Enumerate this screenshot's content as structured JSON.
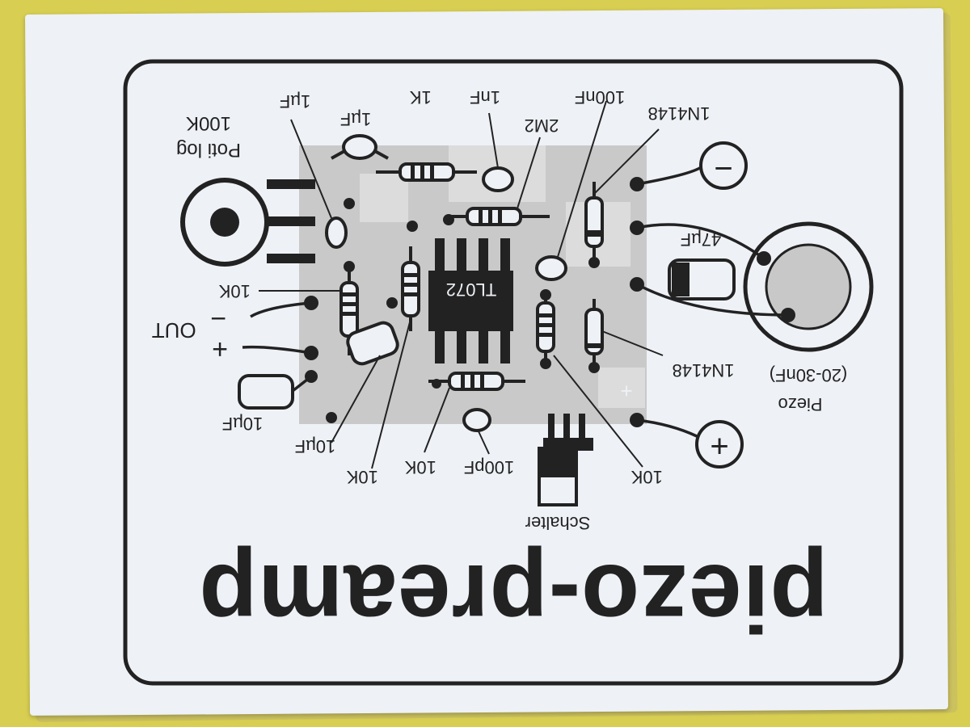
{
  "title": "piezo-preamp",
  "labels": {
    "poti": "Poti log",
    "poti_value": "100K",
    "c1": "1µF",
    "c2": "1µF",
    "r1k": "1K",
    "c1nf": "1nF",
    "r2m2": "2M2",
    "c100nf": "100nF",
    "d1": "1N4148",
    "c47": "47µF",
    "r10k_a": "10K",
    "out": "OUT",
    "minus_out": "−",
    "plus_out": "+",
    "ic": "TL072",
    "d2": "1N4148",
    "piezo": "Piezo",
    "piezo_range": "(20-30nF)",
    "c10uf_a": "10µF",
    "c10uf_b": "10µF",
    "r10k_b": "10K",
    "r10k_c": "10K",
    "c100pf": "100pF",
    "r10k_d": "10K",
    "schalter": "Schalter",
    "minus_term": "−",
    "plus_term": "+",
    "pad_plus": "+"
  },
  "colors": {
    "ink": "#222222",
    "paper": "#eef1f6",
    "background": "#d8cf52",
    "pcb": "#c9c9c9"
  }
}
